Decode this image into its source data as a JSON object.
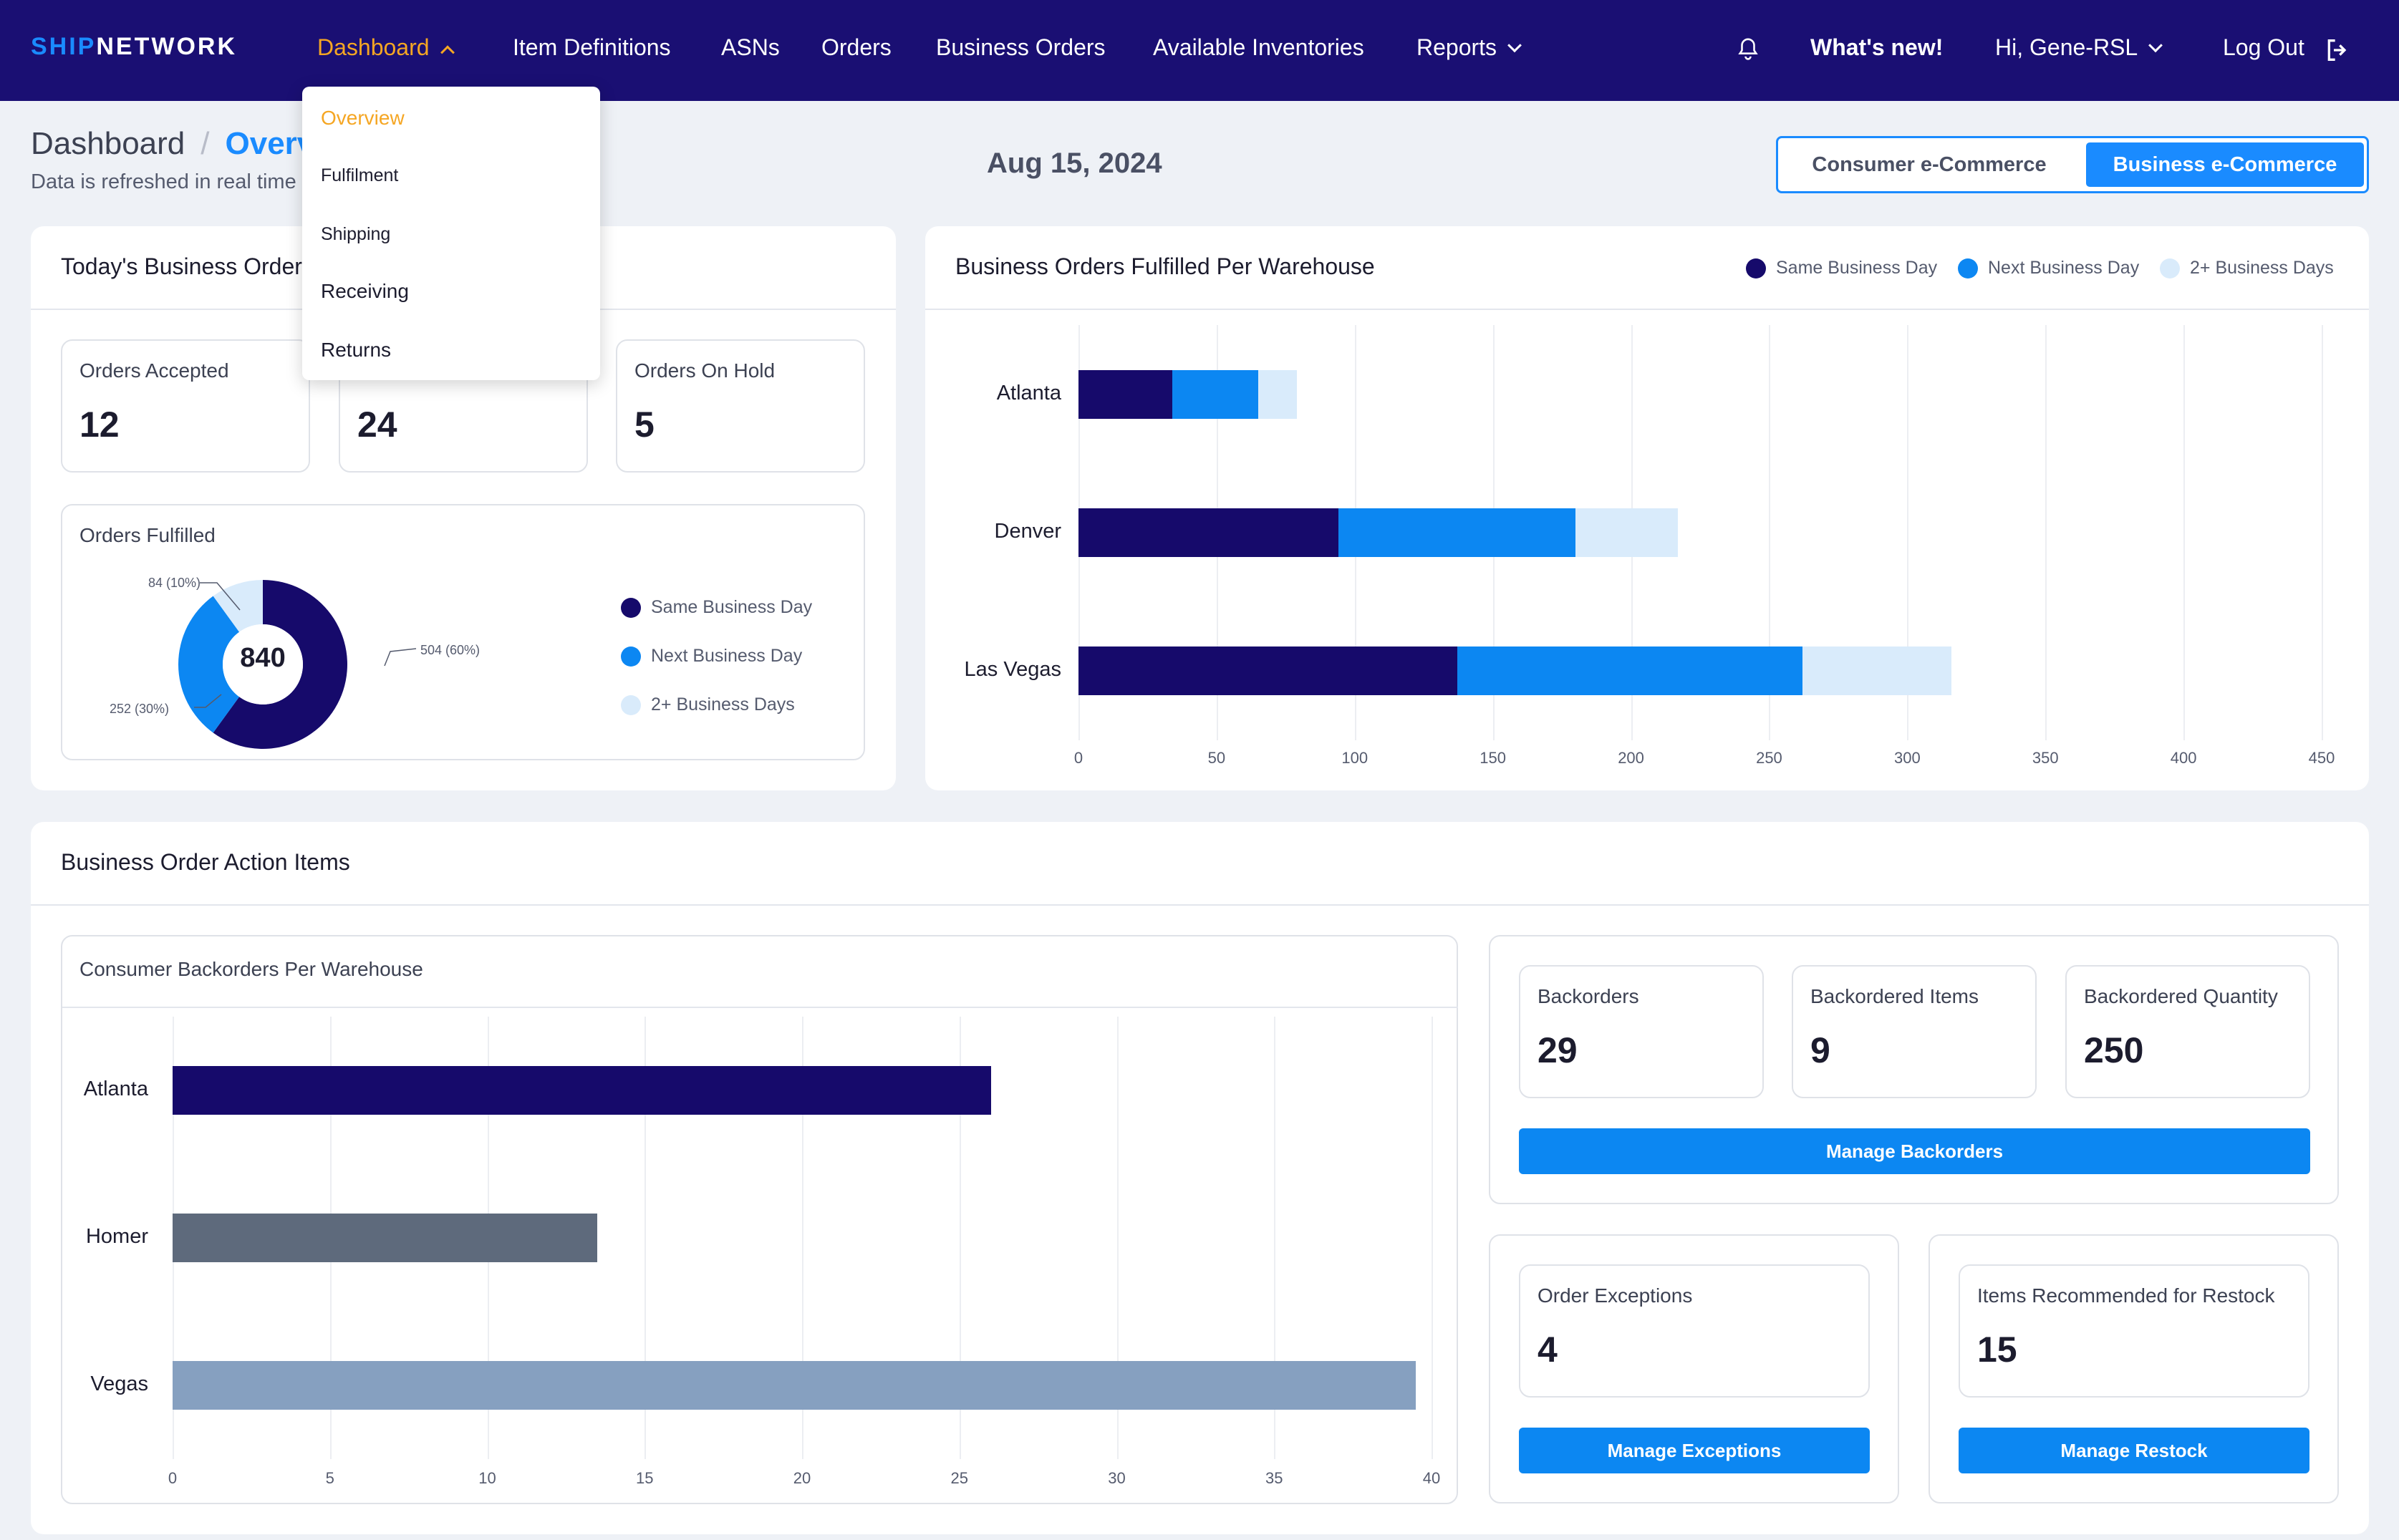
{
  "brand": {
    "part1": "SHIP",
    "part2": "NETWORK"
  },
  "nav": {
    "dashboard": "Dashboard",
    "item_definitions": "Item Definitions",
    "asns": "ASNs",
    "orders": "Orders",
    "business_orders": "Business Orders",
    "available_inventories": "Available Inventories",
    "reports": "Reports",
    "whats_new": "What's new!",
    "user": "Hi, Gene-RSL",
    "logout": "Log Out"
  },
  "dropdown": {
    "items": [
      "Overview",
      "Fulfilment",
      "Shipping",
      "Receiving",
      "Returns"
    ],
    "selected": "Overview"
  },
  "header": {
    "breadcrumb_root": "Dashboard",
    "breadcrumb_sep": "/",
    "breadcrumb_current": "Overview",
    "refresh_text": "Data is refreshed in real time",
    "date": "Aug 15, 2024",
    "toggle_consumer": "Consumer e-Commerce",
    "toggle_business": "Business e-Commerce"
  },
  "today": {
    "title": "Today's Business Orders",
    "stats": [
      {
        "label": "Orders Accepted",
        "value": "12"
      },
      {
        "label": "",
        "value": "24"
      },
      {
        "label": "Orders On Hold",
        "value": "5"
      }
    ],
    "fulfilled_title": "Orders Fulfilled",
    "donut_total": "840",
    "donut_labels": [
      "84 (10%)",
      "504 (60%)",
      "252 (30%)"
    ],
    "legend": [
      "Same Business Day",
      "Next Business Day",
      "2+ Business Days"
    ]
  },
  "colors": {
    "same_day": "#160a6b",
    "next_day": "#0c87f2",
    "two_plus": "#d9ebfb",
    "homer": "#5e6a7c",
    "vegas": "#86a0c0",
    "accent": "#1a8bff",
    "nav_bg": "#1a0f73",
    "active": "#f5a623"
  },
  "chart_data": [
    {
      "type": "bar",
      "orientation": "horizontal",
      "stacked": true,
      "title": "Business Orders Fulfilled Per Warehouse",
      "categories": [
        "Atlanta",
        "Denver",
        "Las Vegas"
      ],
      "series": [
        {
          "name": "Same Business Day",
          "values": [
            34,
            94,
            137
          ]
        },
        {
          "name": "Next Business Day",
          "values": [
            31,
            86,
            125
          ]
        },
        {
          "name": "2+ Business Days",
          "values": [
            14,
            37,
            54
          ]
        }
      ],
      "xlim": [
        0,
        450
      ],
      "xticks": [
        0,
        50,
        100,
        150,
        200,
        250,
        300,
        350,
        400,
        450
      ],
      "legend": "top-right",
      "grid": true
    },
    {
      "type": "pie",
      "title": "Orders Fulfilled",
      "categories": [
        "Same Business Day",
        "Next Business Day",
        "2+ Business Days"
      ],
      "values": [
        504,
        252,
        84
      ],
      "total": 840
    },
    {
      "type": "bar",
      "orientation": "horizontal",
      "title": "Consumer Backorders Per Warehouse",
      "categories": [
        "Atlanta",
        "Homer",
        "Vegas"
      ],
      "values": [
        26,
        13.5,
        39.5
      ],
      "xlim": [
        0,
        40
      ],
      "xticks": [
        0,
        5,
        10,
        15,
        20,
        25,
        30,
        35,
        40
      ],
      "grid": true
    }
  ],
  "action": {
    "title": "Business Order Action Items",
    "backorders_chart_title": "Consumer Backorders Per Warehouse",
    "stats": [
      {
        "label": "Backorders",
        "value": "29"
      },
      {
        "label": "Backordered Items",
        "value": "9"
      },
      {
        "label": "Backordered Quantity",
        "value": "250"
      }
    ],
    "manage_backorders": "Manage Backorders",
    "exceptions": {
      "label": "Order Exceptions",
      "value": "4",
      "button": "Manage Exceptions"
    },
    "restock": {
      "label": "Items Recommended for Restock",
      "value": "15",
      "button": "Manage Restock"
    }
  }
}
